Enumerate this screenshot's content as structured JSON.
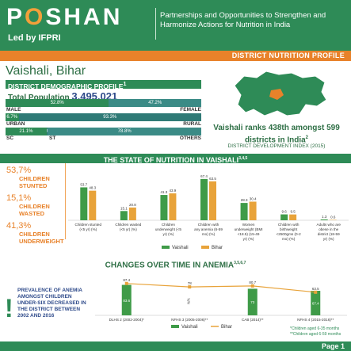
{
  "header": {
    "logo_pre": "P",
    "logo_o": "O",
    "logo_post": "SHAN",
    "led_by": "Led by IFPRI",
    "tagline": "Partnerships and Opportunities to Strengthen and Harmonize Actions for Nutrition in India",
    "profile_label": "DISTRICT NUTRITION PROFILE"
  },
  "district": {
    "name": "Vaishali, Bihar",
    "demo_title": "DISTRICT DEMOGRAPHIC PROFILE",
    "demo_sup": "1",
    "total_pop_label": "Total Population",
    "total_pop": "3,495,021"
  },
  "demographics": [
    {
      "left_label": "MALE",
      "right_label": "FEMALE",
      "segments": [
        {
          "text": "52.8%",
          "pct": 52.8,
          "color": "#2e8b57"
        },
        {
          "text": "47.2%",
          "pct": 47.2,
          "color": "#3b8b86"
        }
      ]
    },
    {
      "left_label": "URBAN",
      "right_label": "RURAL",
      "segments": [
        {
          "text": "6.7%",
          "pct": 6.7,
          "color": "#2e8b57"
        },
        {
          "text": "93.3%",
          "pct": 93.3,
          "color": "#2f7a76"
        }
      ]
    },
    {
      "left_label": "SC",
      "mid_label": "ST",
      "right_label": "OTHERS",
      "segments": [
        {
          "text": "21.1%",
          "pct": 21.1,
          "color": "#2e8b57"
        },
        {
          "text": "0.1%",
          "pct": 0.1,
          "color": "#2f7a76"
        },
        {
          "text": "78.8%",
          "pct": 78.8,
          "color": "#3b8b86"
        }
      ]
    }
  ],
  "rank": {
    "line1": "Vaishali ranks 438th amongst 599",
    "line2": "districts in India",
    "sup": "2",
    "sub": "DISTRICT DEVELOPMENT INDEX (2015)"
  },
  "state_section": {
    "title": "THE STATE OF NUTRITION IN VAISHALI",
    "sup": "3,4,5"
  },
  "headline_stats": [
    {
      "pct": "53,7%",
      "label": "CHILDREN STUNTED"
    },
    {
      "pct": "15,1%",
      "label": "CHILDREN WASTED"
    },
    {
      "pct": "41,3%",
      "label": "CHILDREN UNDERWEIGHT"
    }
  ],
  "anemia_section": {
    "title": "CHANGES OVER TIME IN ANEMIA",
    "sup": "3,5,6,7"
  },
  "anemia_note": "PREVALENCE OF ANEMIA AMONGST CHILDREN UNDER-SIX DECREASED IN THE DISTRICT BETWEEN 2002 AND 2016",
  "anemia_footnotes": [
    "*Children aged 6-35 months",
    "**Children aged 6-59 months"
  ],
  "footer": {
    "page": "Page 1"
  },
  "colors": {
    "green": "#2e8b57",
    "orange": "#e8822a",
    "vaishali": "#3f9b48",
    "bihar": "#e8a33a"
  },
  "chart_data": [
    {
      "type": "bar",
      "categories": [
        "Children stunted (<5 yr) (%)",
        "Children wasted (<5 yr) (%)",
        "Children underweight (<5 yr) (%)",
        "Children with any anemia (6-59 mo) (%)",
        "Women underweight (BMI <18.5) (15-49 yr) (%)",
        "Children with birthweight <2500gms (0-2 mo) (%)",
        "Adults who are obese in the district (18-59 yr) (%)"
      ],
      "series": [
        {
          "name": "Vaishali",
          "values": [
            53.7,
            15.1,
            41.3,
            67.4,
            28.3,
            9.6,
            1.3
          ]
        },
        {
          "name": "Bihar",
          "values": [
            48.3,
            20.8,
            43.9,
            63.5,
            30.4,
            9.5,
            0.6
          ]
        }
      ],
      "ylim": [
        0,
        75
      ]
    },
    {
      "type": "bar",
      "categories": [
        "DLHS 2 (2002-2004)*",
        "NFHS 3 (2005-2006)**",
        "CAB (2014)**",
        "NFHS 4 (2015-2016)**"
      ],
      "series": [
        {
          "name": "Vaishali",
          "values": [
            83.6,
            null,
            73.0,
            67.4
          ]
        },
        {
          "name": "Bihar",
          "values": [
            87.4,
            78.0,
            80.7,
            63.5
          ]
        }
      ],
      "annotations": {
        "na_label": "N/A"
      },
      "ylim": [
        0,
        100
      ]
    }
  ]
}
